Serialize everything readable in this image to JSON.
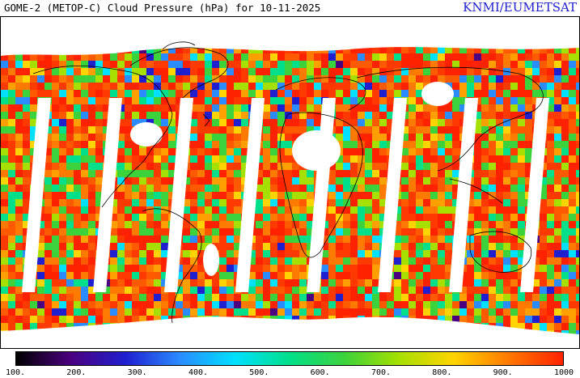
{
  "header": {
    "title": "GOME-2 (METOP-C) Cloud Pressure (hPa) for 10-11-2025",
    "credit": "KNMI/EUMETSAT"
  },
  "map": {
    "variable": "Cloud Pressure",
    "unit": "hPa",
    "no_data_color": "#ffffff",
    "coastline_color": "#000000",
    "swath_gaps": 8
  },
  "colorbar": {
    "min": 100,
    "max": 1000,
    "stops": [
      "#000000",
      "#4b007f",
      "#1f1fd0",
      "#2a8cff",
      "#00e0ff",
      "#00e08a",
      "#3cd23c",
      "#a6e000",
      "#ffd400",
      "#ff7a00",
      "#ff2200"
    ],
    "tick_labels": [
      "100.",
      "200.",
      "300.",
      "400.",
      "500.",
      "600.",
      "700.",
      "800.",
      "900.",
      "1000"
    ]
  }
}
